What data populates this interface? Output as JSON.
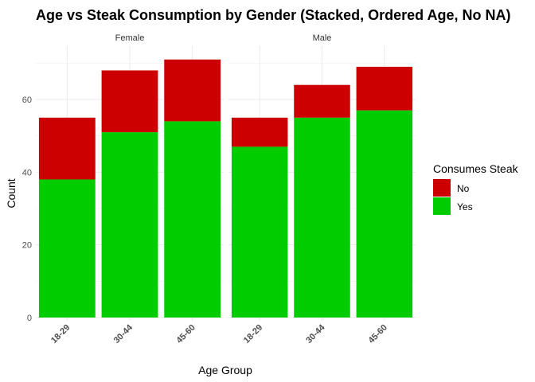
{
  "chart_data": {
    "type": "bar",
    "stacked": true,
    "title": "Age vs Steak Consumption by Gender (Stacked, Ordered Age, No NA)",
    "xlabel": "Age Group",
    "ylabel": "Count",
    "ylim": [
      0,
      70
    ],
    "yticks": [
      0,
      20,
      40,
      60
    ],
    "grid": true,
    "legend": {
      "title": "Consumes Steak",
      "placement": "right"
    },
    "categories": [
      "18-29",
      "30-44",
      "45-60"
    ],
    "facets": [
      {
        "name": "Female",
        "series": [
          {
            "name": "Yes",
            "values": [
              38,
              51,
              54
            ]
          },
          {
            "name": "No",
            "values": [
              17,
              17,
              17
            ]
          }
        ]
      },
      {
        "name": "Male",
        "series": [
          {
            "name": "Yes",
            "values": [
              47,
              55,
              57
            ]
          },
          {
            "name": "No",
            "values": [
              8,
              9,
              12
            ]
          }
        ]
      }
    ],
    "legend_items": [
      {
        "name": "No",
        "color": "#CC0000"
      },
      {
        "name": "Yes",
        "color": "#00CC00"
      }
    ]
  }
}
